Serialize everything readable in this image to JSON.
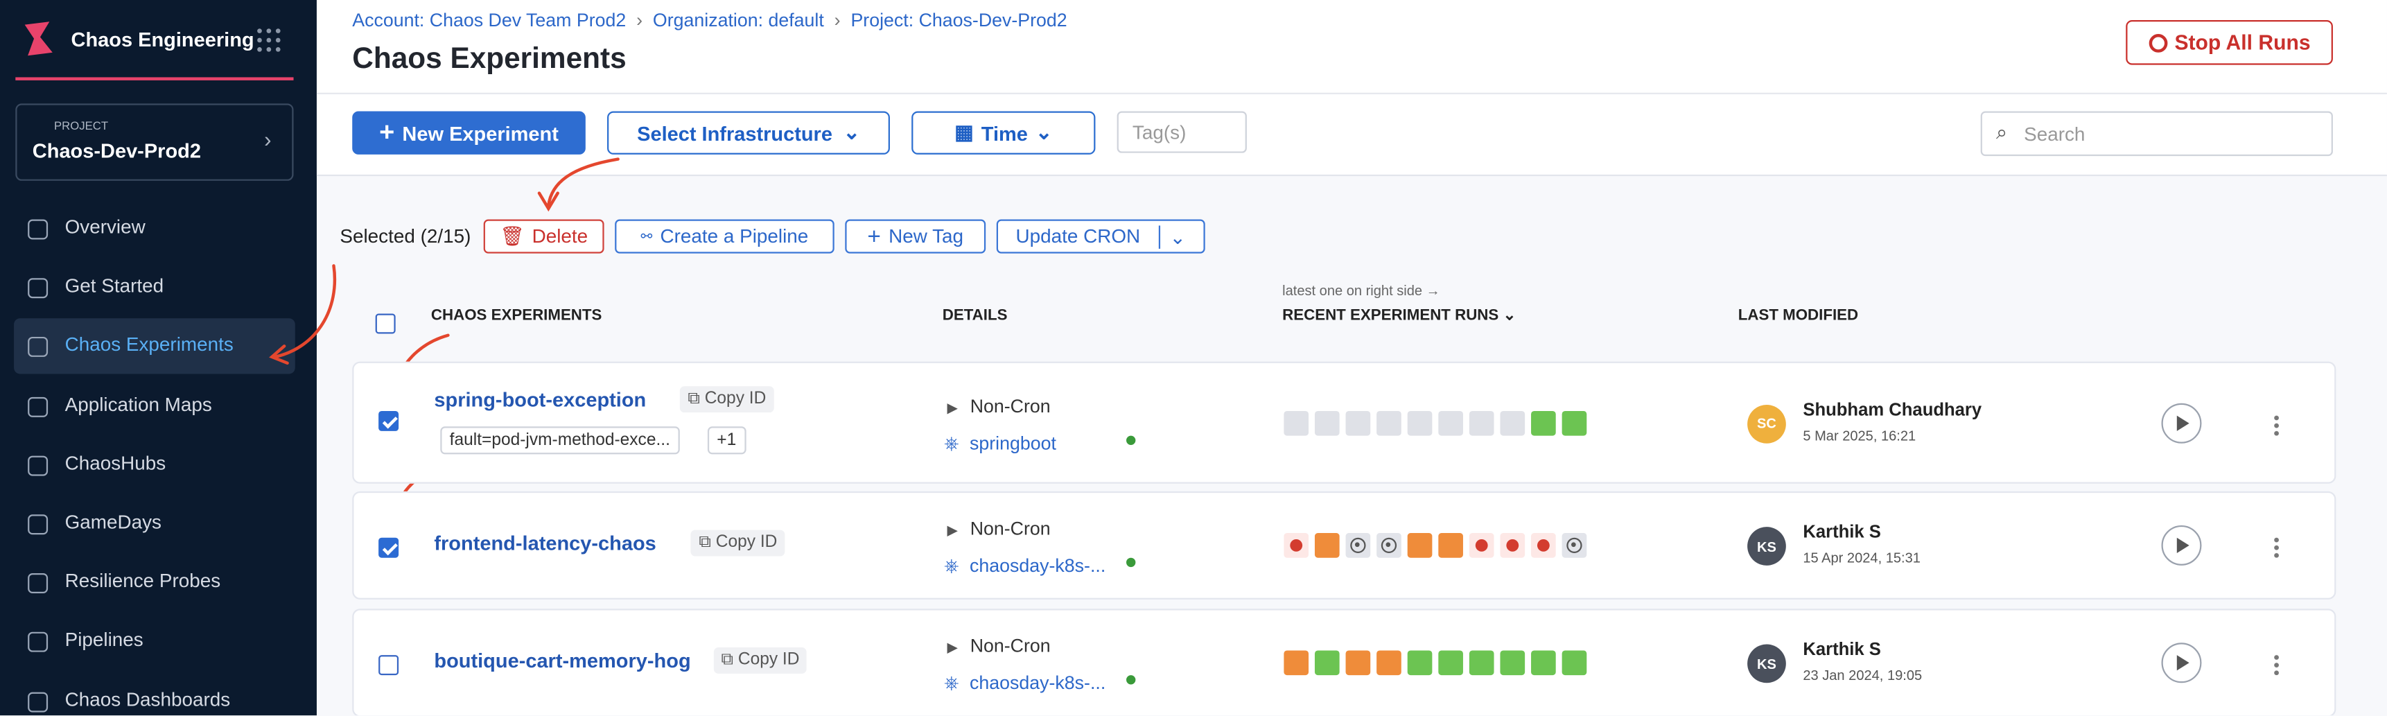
{
  "sidebar": {
    "app_title": "Chaos Engineering",
    "project_label": "PROJECT",
    "project_name": "Chaos-Dev-Prod2",
    "nav": [
      "Overview",
      "Get Started",
      "Chaos Experiments",
      "Application Maps",
      "ChaosHubs",
      "GameDays",
      "Resilience Probes",
      "Pipelines",
      "Chaos Dashboards"
    ]
  },
  "header": {
    "breadcrumb": [
      "Account: Chaos Dev Team Prod2",
      "Organization: default",
      "Project: Chaos-Dev-Prod2"
    ],
    "title": "Chaos Experiments",
    "stop_button": "Stop All Runs"
  },
  "toolbar": {
    "new_experiment": "New Experiment",
    "select_infrastructure": "Select Infrastructure",
    "time": "Time",
    "tags_placeholder": "Tag(s)",
    "search_placeholder": "Search"
  },
  "selection": {
    "selected": "Selected (2/15)",
    "actions": [
      "Delete",
      "Create a Pipeline",
      "New Tag",
      "Update CRON"
    ]
  },
  "table": {
    "headers": [
      "CHAOS EXPERIMENTS",
      "DETAILS",
      "RECENT EXPERIMENT RUNS",
      "LAST MODIFIED"
    ],
    "runs_hint": "latest one on right side →",
    "rows": [
      {
        "name": "spring-boot-exception",
        "copy_id": "Copy ID",
        "tags": [
          "fault=pod-jvm-method-exce...",
          "+1"
        ],
        "schedule": "Non-Cron",
        "infra": "springboot",
        "initials": "SC",
        "user": "Shubham Chaudhary",
        "date": "5 Mar 2025, 16:21"
      },
      {
        "name": "frontend-latency-chaos",
        "copy_id": "Copy ID",
        "schedule": "Non-Cron",
        "infra": "chaosday-k8s-...",
        "initials": "KS",
        "user": "Karthik S",
        "date": "15 Apr 2024, 15:31"
      },
      {
        "name": "boutique-cart-memory-hog",
        "copy_id": "Copy ID",
        "schedule": "Non-Cron",
        "infra": "chaosday-k8s-...",
        "initials": "KS",
        "user": "Karthik S",
        "date": "23 Jan 2024, 19:05"
      }
    ]
  }
}
